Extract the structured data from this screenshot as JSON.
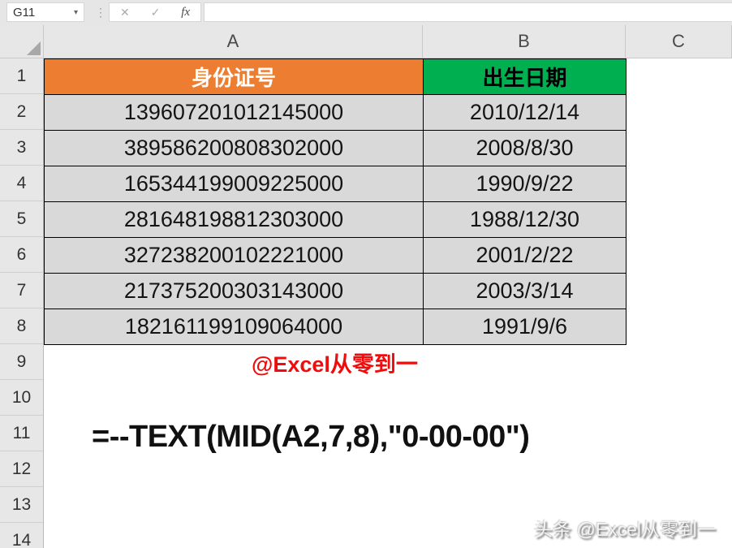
{
  "toolbar": {
    "name_box": "G11",
    "formula_value": "",
    "icons": {
      "dropdown": "▾",
      "dots": "⋮",
      "cancel": "✕",
      "enter": "✓",
      "fx": "fx"
    }
  },
  "sheet": {
    "column_headers": [
      "A",
      "B",
      "C"
    ],
    "row_headers": [
      "1",
      "2",
      "3",
      "4",
      "5",
      "6",
      "7",
      "8",
      "9",
      "10",
      "11",
      "12",
      "13",
      "14"
    ],
    "table": {
      "headers": [
        {
          "label": "身份证号",
          "bg": "#ED7D31",
          "color": "#FFFFFF"
        },
        {
          "label": "出生日期",
          "bg": "#00B050",
          "color": "#000000"
        }
      ],
      "cell_bg": "#D9D9D9",
      "rows": [
        {
          "id": "139607201012145000",
          "date": "2010/12/14"
        },
        {
          "id": "389586200808302000",
          "date": "2008/8/30"
        },
        {
          "id": "165344199009225000",
          "date": "1990/9/22"
        },
        {
          "id": "281648198812303000",
          "date": "1988/12/30"
        },
        {
          "id": "327238200102221000",
          "date": "2001/2/22"
        },
        {
          "id": "217375200303143000",
          "date": "2003/3/14"
        },
        {
          "id": "182161199109064000",
          "date": "1991/9/6"
        }
      ]
    },
    "annotations": {
      "red_note": "@Excel从零到一",
      "red_note_color": "#EE0C0C",
      "formula": "=--TEXT(MID(A2,7,8),\"0-00-00\")",
      "bottom_watermark": "头条 @Excel从零到一"
    }
  }
}
